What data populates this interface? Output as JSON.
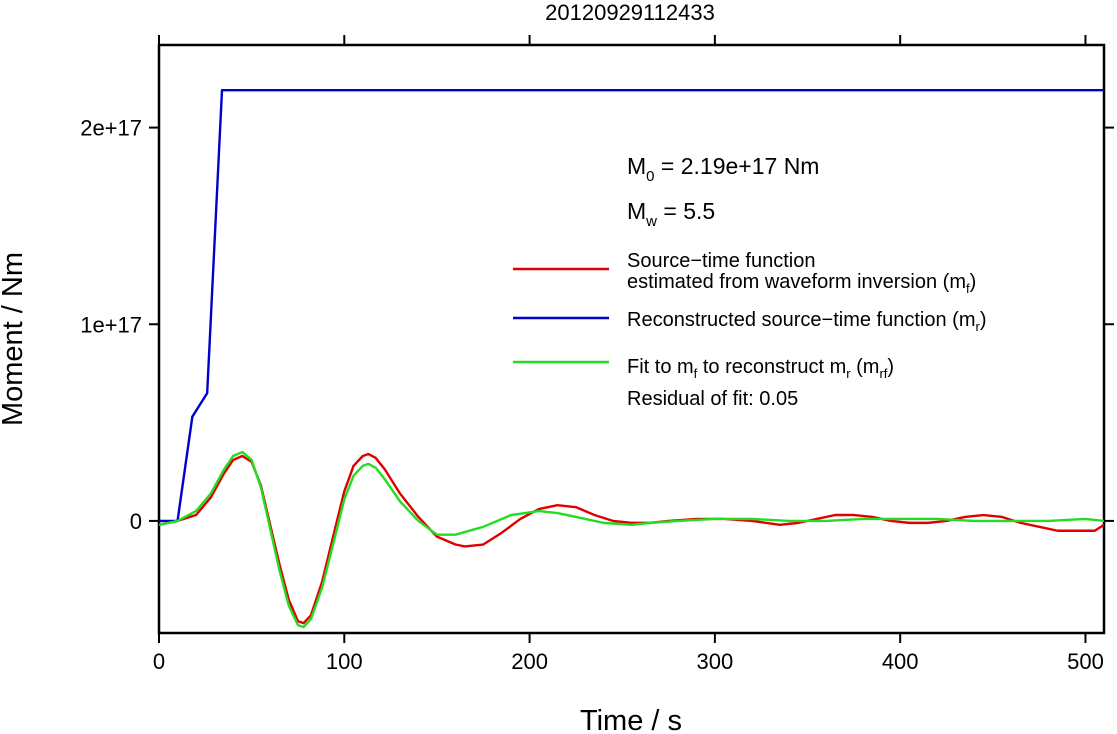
{
  "chart_data": {
    "type": "line",
    "title": "20120929112433",
    "xlabel": "Time / s",
    "ylabel": "Moment / Nm",
    "xlim": [
      0,
      510
    ],
    "ylim": [
      -5.7e+16,
      2.42e+17
    ],
    "x_ticks": [
      0,
      100,
      200,
      300,
      400,
      500
    ],
    "x_tick_labels": [
      "0",
      "100",
      "200",
      "300",
      "400",
      "500"
    ],
    "y_ticks": [
      0,
      1e+17,
      2e+17
    ],
    "y_tick_labels": [
      "0",
      "1e+17",
      "2e+17"
    ],
    "grid": false,
    "legend_position": "center-right",
    "annotations": {
      "m0": {
        "main": "M",
        "sub": "0",
        "rest": " = 2.19e+17 Nm"
      },
      "mw": {
        "main": "M",
        "sub": "w",
        "rest": " = 5.5"
      },
      "residual": "Residual of fit: 0.05"
    },
    "legend": [
      {
        "color": "#e00000",
        "lines": [
          [
            {
              "t": "Source−time function"
            }
          ],
          [
            {
              "t": "estimated from waveform inversion (m"
            },
            {
              "t": "f",
              "sub": true
            },
            {
              "t": ")"
            }
          ]
        ]
      },
      {
        "color": "#0000cc",
        "lines": [
          [
            {
              "t": "Reconstructed source−time function (m"
            },
            {
              "t": "r",
              "sub": true
            },
            {
              "t": ")"
            }
          ]
        ]
      },
      {
        "color": "#22dd22",
        "lines": [
          [
            {
              "t": "Fit to m"
            },
            {
              "t": "f",
              "sub": true
            },
            {
              "t": " to reconstruct m"
            },
            {
              "t": "r",
              "sub": true
            },
            {
              "t": " (m"
            },
            {
              "t": "rf",
              "sub": true
            },
            {
              "t": ")"
            }
          ]
        ]
      }
    ],
    "series": [
      {
        "color": "#e00000",
        "x": [
          0,
          10,
          20,
          28,
          35,
          40,
          45,
          50,
          55,
          60,
          65,
          70,
          75,
          78,
          82,
          88,
          95,
          100,
          105,
          110,
          113,
          117,
          122,
          130,
          140,
          150,
          160,
          165,
          175,
          185,
          195,
          205,
          215,
          225,
          235,
          245,
          255,
          265,
          275,
          290,
          305,
          320,
          335,
          345,
          355,
          365,
          375,
          385,
          395,
          405,
          415,
          425,
          435,
          445,
          455,
          465,
          475,
          485,
          495,
          505,
          510
        ],
        "y": [
          -2000000000000000.0,
          0,
          3000000000000000.0,
          1.2e+16,
          2.4e+16,
          3.1e+16,
          3.3e+16,
          3e+16,
          1.8e+16,
          -2000000000000000.0,
          -2.2e+16,
          -4e+16,
          -5.1e+16,
          -5.2e+16,
          -4.8e+16,
          -3.1e+16,
          -4000000000000000.0,
          1.5e+16,
          2.8e+16,
          3.3e+16,
          3.4e+16,
          3.2e+16,
          2.6e+16,
          1.4e+16,
          2000000000000000.0,
          -8000000000000000.0,
          -1.2e+16,
          -1.3e+16,
          -1.2e+16,
          -6000000000000000.0,
          1000000000000000.0,
          6000000000000000.0,
          8000000000000000.0,
          7000000000000000.0,
          3000000000000000.0,
          0,
          -1000000000000000.0,
          -1000000000000000.0,
          0,
          1000000000000000.0,
          1000000000000000.0,
          0,
          -2000000000000000.0,
          -1000000000000000.0,
          1000000000000000.0,
          3000000000000000.0,
          3000000000000000.0,
          2000000000000000.0,
          0,
          -1000000000000000.0,
          -1000000000000000.0,
          0,
          2000000000000000.0,
          3000000000000000.0,
          2000000000000000.0,
          -1000000000000000.0,
          -3000000000000000.0,
          -5000000000000000.0,
          -5000000000000000.0,
          -5000000000000000.0,
          -2000000000000000.0
        ]
      },
      {
        "color": "#0000cc",
        "x": [
          0,
          10,
          18,
          26,
          34,
          510
        ],
        "y": [
          0,
          0,
          5.3e+16,
          6.5e+16,
          2.19e+17,
          2.19e+17
        ]
      },
      {
        "color": "#22dd22",
        "x": [
          0,
          10,
          20,
          28,
          35,
          40,
          45,
          50,
          55,
          60,
          65,
          70,
          75,
          78,
          82,
          88,
          95,
          100,
          105,
          110,
          113,
          117,
          122,
          130,
          140,
          150,
          160,
          175,
          190,
          205,
          215,
          225,
          240,
          255,
          265,
          280,
          300,
          320,
          340,
          360,
          380,
          400,
          420,
          440,
          460,
          480,
          500,
          510
        ],
        "y": [
          -2000000000000000.0,
          0,
          5000000000000000.0,
          1.4e+16,
          2.6e+16,
          3.3e+16,
          3.5e+16,
          3.1e+16,
          1.7e+16,
          -4000000000000000.0,
          -2.5e+16,
          -4.3e+16,
          -5.3e+16,
          -5.4e+16,
          -5e+16,
          -3.4e+16,
          -8000000000000000.0,
          1.1e+16,
          2.3e+16,
          2.8e+16,
          2.9e+16,
          2.7e+16,
          2.1e+16,
          1e+16,
          0,
          -7000000000000000.0,
          -7000000000000000.0,
          -3000000000000000.0,
          3000000000000000.0,
          5000000000000000.0,
          4000000000000000.0,
          2000000000000000.0,
          -1000000000000000.0,
          -2000000000000000.0,
          -1000000000000000.0,
          0,
          1000000000000000.0,
          1000000000000000.0,
          0,
          0,
          1000000000000000.0,
          1000000000000000.0,
          1000000000000000.0,
          0,
          0,
          0,
          1000000000000000.0,
          0
        ]
      }
    ]
  }
}
